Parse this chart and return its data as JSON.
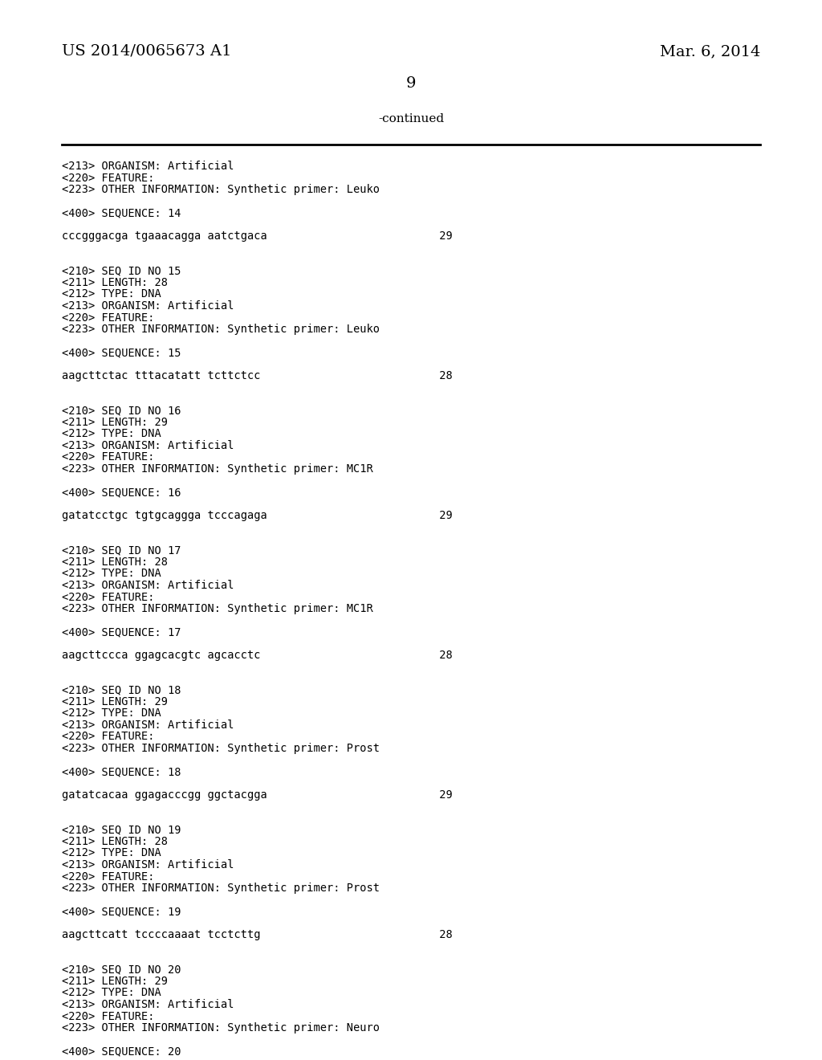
{
  "bg_color": "#ffffff",
  "header_left": "US 2014/0065673 A1",
  "header_right": "Mar. 6, 2014",
  "page_number": "9",
  "continued_label": "-continued",
  "content_lines": [
    "<213> ORGANISM: Artificial",
    "<220> FEATURE:",
    "<223> OTHER INFORMATION: Synthetic primer: Leuko",
    "",
    "<400> SEQUENCE: 14",
    "",
    "cccgggacga tgaaacagga aatctgaca                          29",
    "",
    "",
    "<210> SEQ ID NO 15",
    "<211> LENGTH: 28",
    "<212> TYPE: DNA",
    "<213> ORGANISM: Artificial",
    "<220> FEATURE:",
    "<223> OTHER INFORMATION: Synthetic primer: Leuko",
    "",
    "<400> SEQUENCE: 15",
    "",
    "aagcttctac tttacatatt tcttctcc                           28",
    "",
    "",
    "<210> SEQ ID NO 16",
    "<211> LENGTH: 29",
    "<212> TYPE: DNA",
    "<213> ORGANISM: Artificial",
    "<220> FEATURE:",
    "<223> OTHER INFORMATION: Synthetic primer: MC1R",
    "",
    "<400> SEQUENCE: 16",
    "",
    "gatatcctgc tgtgcaggga tcccagaga                          29",
    "",
    "",
    "<210> SEQ ID NO 17",
    "<211> LENGTH: 28",
    "<212> TYPE: DNA",
    "<213> ORGANISM: Artificial",
    "<220> FEATURE:",
    "<223> OTHER INFORMATION: Synthetic primer: MC1R",
    "",
    "<400> SEQUENCE: 17",
    "",
    "aagcttccca ggagcacgtc agcacctc                           28",
    "",
    "",
    "<210> SEQ ID NO 18",
    "<211> LENGTH: 29",
    "<212> TYPE: DNA",
    "<213> ORGANISM: Artificial",
    "<220> FEATURE:",
    "<223> OTHER INFORMATION: Synthetic primer: Prost",
    "",
    "<400> SEQUENCE: 18",
    "",
    "gatatcacaa ggagacccgg ggctacgga                          29",
    "",
    "",
    "<210> SEQ ID NO 19",
    "<211> LENGTH: 28",
    "<212> TYPE: DNA",
    "<213> ORGANISM: Artificial",
    "<220> FEATURE:",
    "<223> OTHER INFORMATION: Synthetic primer: Prost",
    "",
    "<400> SEQUENCE: 19",
    "",
    "aagcttcatt tccccaaaat tcctcttg                           28",
    "",
    "",
    "<210> SEQ ID NO 20",
    "<211> LENGTH: 29",
    "<212> TYPE: DNA",
    "<213> ORGANISM: Artificial",
    "<220> FEATURE:",
    "<223> OTHER INFORMATION: Synthetic primer: Neuro",
    "",
    "<400> SEQUENCE: 20"
  ],
  "font_size_header": 14,
  "font_size_page": 14,
  "font_size_continued": 11,
  "font_size_content": 9.8,
  "content_font": "monospace",
  "header_font": "DejaVu Serif"
}
